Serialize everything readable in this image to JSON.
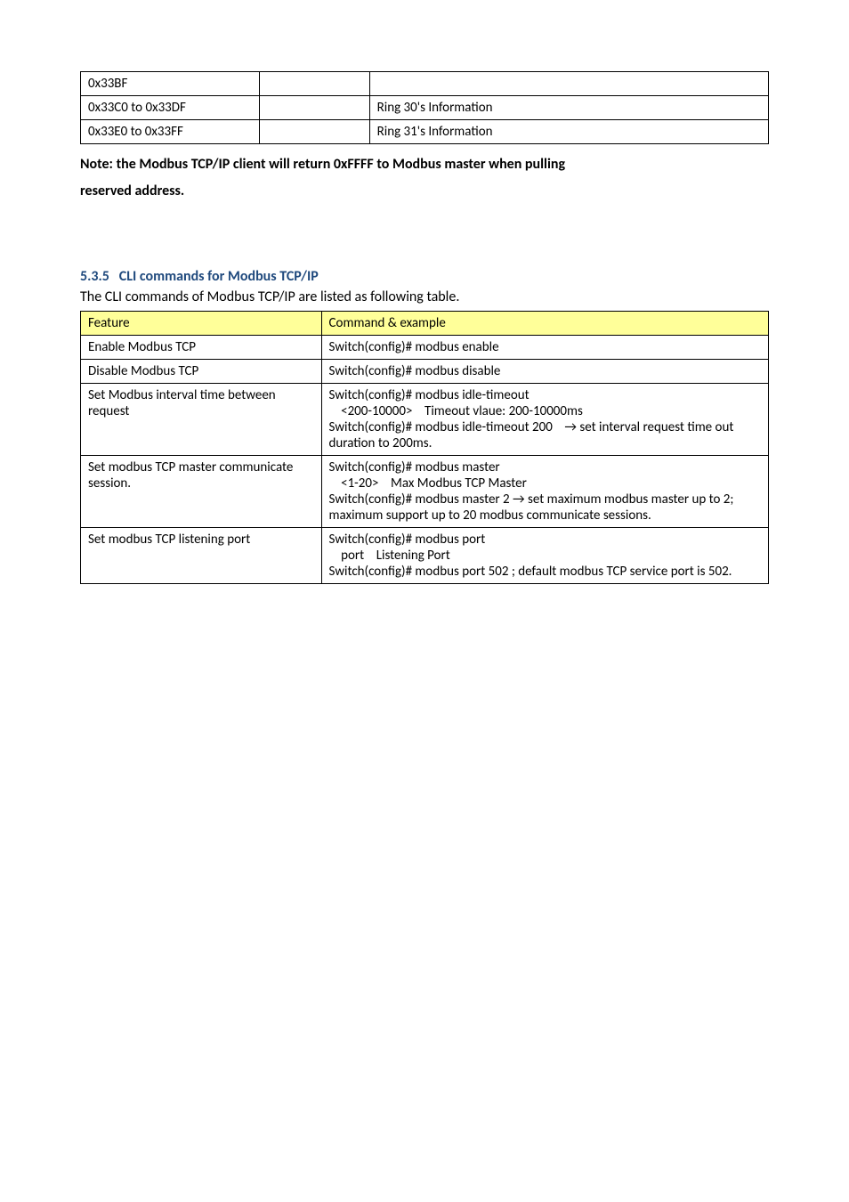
{
  "table1": {
    "rows": [
      {
        "c0": "0x33BF",
        "c1": "",
        "c2": ""
      },
      {
        "c0": "0x33C0 to 0x33DF",
        "c1": "",
        "c2": "Ring 30's Information"
      },
      {
        "c0": "0x33E0 to 0x33FF",
        "c1": "",
        "c2": "Ring 31's Information"
      }
    ]
  },
  "note_line1": "Note: the Modbus TCP/IP client will return 0xFFFF to Modbus master when pulling",
  "note_line2": "reserved address.",
  "section_number": "5.3.5",
  "section_title": "CLI commands for Modbus TCP/IP",
  "section_intro": "The CLI commands of Modbus TCP/IP are listed as following table.",
  "table2": {
    "header": {
      "c0": "Feature",
      "c1": "Command & example"
    },
    "rows": [
      {
        "c0": "Enable Modbus TCP",
        "c1": "Switch(config)# modbus enable"
      },
      {
        "c0": "Disable Modbus TCP",
        "c1": "Switch(config)# modbus disable"
      },
      {
        "c0": "Set Modbus interval time between request",
        "c1_lines": [
          "Switch(config)# modbus idle-timeout",
          "    <200-10000>    Timeout vlaue: 200-10000ms",
          "Switch(config)# modbus idle-timeout 200    → set interval request time out duration to 200ms."
        ]
      },
      {
        "c0": "Set modbus TCP master communicate session.",
        "c1_lines": [
          "Switch(config)# modbus master",
          "    <1-20>    Max Modbus TCP Master",
          "Switch(config)# modbus master 2 → set maximum modbus master up to 2; maximum support up to 20 modbus communicate sessions."
        ]
      },
      {
        "c0": "Set modbus TCP listening port",
        "c1_lines": [
          "Switch(config)# modbus port",
          "    port    Listening Port",
          "Switch(config)# modbus port 502 ; default modbus TCP service port is 502."
        ]
      }
    ]
  }
}
